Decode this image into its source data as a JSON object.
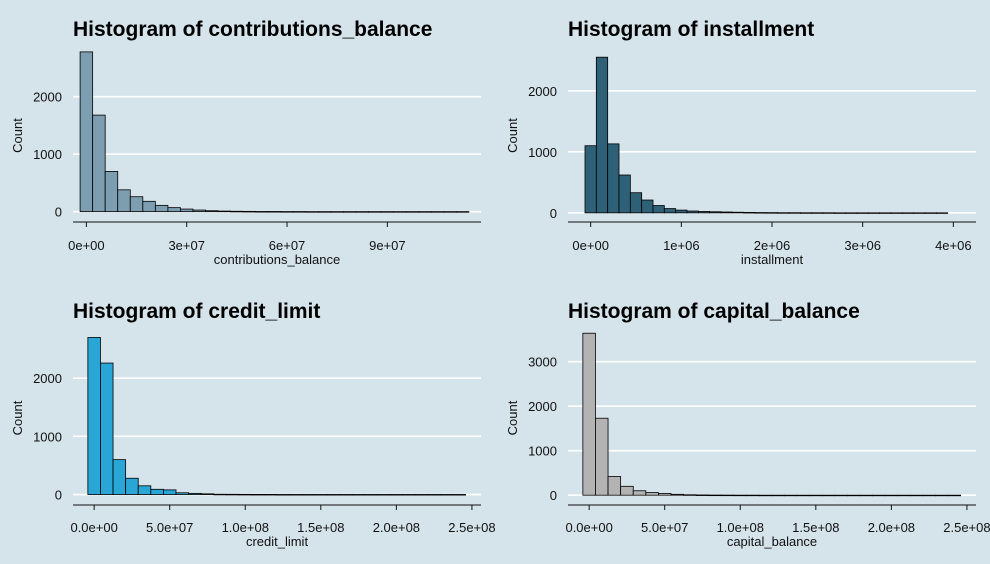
{
  "background": "#d5e4eb",
  "chart_data": [
    {
      "type": "bar",
      "title": "Histogram of contributions_balance",
      "xlabel": "contributions_balance",
      "ylabel": "Count",
      "color": "#7d9eb0",
      "xlim": [
        -4000000,
        118000000
      ],
      "ylim": [
        -180,
        2900
      ],
      "xticks": [
        0,
        30000000,
        60000000,
        90000000
      ],
      "xtick_labels": [
        "0e+00",
        "3e+07",
        "6e+07",
        "9e+07"
      ],
      "yticks": [
        0,
        1000,
        2000
      ],
      "ytick_labels": [
        "0",
        "1000",
        "2000"
      ],
      "bin_start": -1875000,
      "bin_width": 3750000,
      "values": [
        2780,
        1680,
        700,
        380,
        260,
        180,
        110,
        70,
        45,
        28,
        16,
        10,
        7,
        5,
        3,
        3,
        2,
        2,
        1,
        1,
        1,
        1,
        1,
        1,
        1,
        1,
        1,
        1,
        1,
        1,
        1
      ],
      "grid": true,
      "legend": "none"
    },
    {
      "type": "bar",
      "title": "Histogram of installment",
      "xlabel": "installment",
      "ylabel": "Count",
      "color": "#2e6177",
      "xlim": [
        -250000,
        4250000
      ],
      "ylim": [
        -150,
        2750
      ],
      "xticks": [
        0,
        1000000,
        2000000,
        3000000,
        4000000
      ],
      "xtick_labels": [
        "0e+00",
        "1e+06",
        "2e+06",
        "3e+06",
        "4e+06"
      ],
      "yticks": [
        0,
        1000,
        2000
      ],
      "ytick_labels": [
        "0",
        "1000",
        "2000"
      ],
      "bin_start": -62500,
      "bin_width": 125000,
      "values": [
        1100,
        2550,
        1130,
        620,
        330,
        210,
        120,
        70,
        45,
        30,
        22,
        18,
        14,
        10,
        7,
        5,
        4,
        3,
        3,
        2,
        2,
        2,
        1,
        1,
        1,
        1,
        1,
        1,
        1,
        1,
        1,
        1
      ],
      "grid": true,
      "legend": "none"
    },
    {
      "type": "bar",
      "title": "Histogram of credit_limit",
      "xlabel": "credit_limit",
      "ylabel": "Count",
      "color": "#2aa6d6",
      "xlim": [
        -14000000,
        256000000
      ],
      "ylim": [
        -180,
        2880
      ],
      "xticks": [
        0,
        50000000,
        100000000,
        150000000,
        200000000,
        250000000
      ],
      "xtick_labels": [
        "0.0e+00",
        "5.0e+07",
        "1.0e+08",
        "1.5e+08",
        "2.0e+08",
        "2.5e+08"
      ],
      "yticks": [
        0,
        1000,
        2000
      ],
      "ytick_labels": [
        "0",
        "1000",
        "2000"
      ],
      "bin_start": -4166667,
      "bin_width": 8333333,
      "values": [
        2700,
        2260,
        600,
        280,
        150,
        90,
        80,
        30,
        20,
        12,
        5,
        4,
        3,
        2,
        2,
        1,
        1,
        1,
        1,
        1,
        1,
        1,
        1,
        1,
        1,
        1,
        1,
        1,
        1,
        1
      ],
      "grid": true,
      "legend": "none"
    },
    {
      "type": "bar",
      "title": "Histogram of capital_balance",
      "xlabel": "capital_balance",
      "ylabel": "Count",
      "color": "#b3b3b3",
      "xlim": [
        -14000000,
        256000000
      ],
      "ylim": [
        -220,
        3780
      ],
      "xticks": [
        0,
        50000000,
        100000000,
        150000000,
        200000000,
        250000000
      ],
      "xtick_labels": [
        "0.0e+00",
        "5.0e+07",
        "1.0e+08",
        "1.5e+08",
        "2.0e+08",
        "2.5e+08"
      ],
      "yticks": [
        0,
        1000,
        2000,
        3000
      ],
      "ytick_labels": [
        "0",
        "1000",
        "2000",
        "3000"
      ],
      "bin_start": -4166667,
      "bin_width": 8333333,
      "values": [
        3640,
        1730,
        420,
        200,
        100,
        60,
        40,
        20,
        10,
        6,
        4,
        3,
        2,
        2,
        1,
        1,
        1,
        1,
        1,
        1,
        1,
        1,
        1,
        1,
        1,
        1,
        1,
        1,
        1,
        1
      ],
      "grid": true,
      "legend": "none"
    }
  ]
}
